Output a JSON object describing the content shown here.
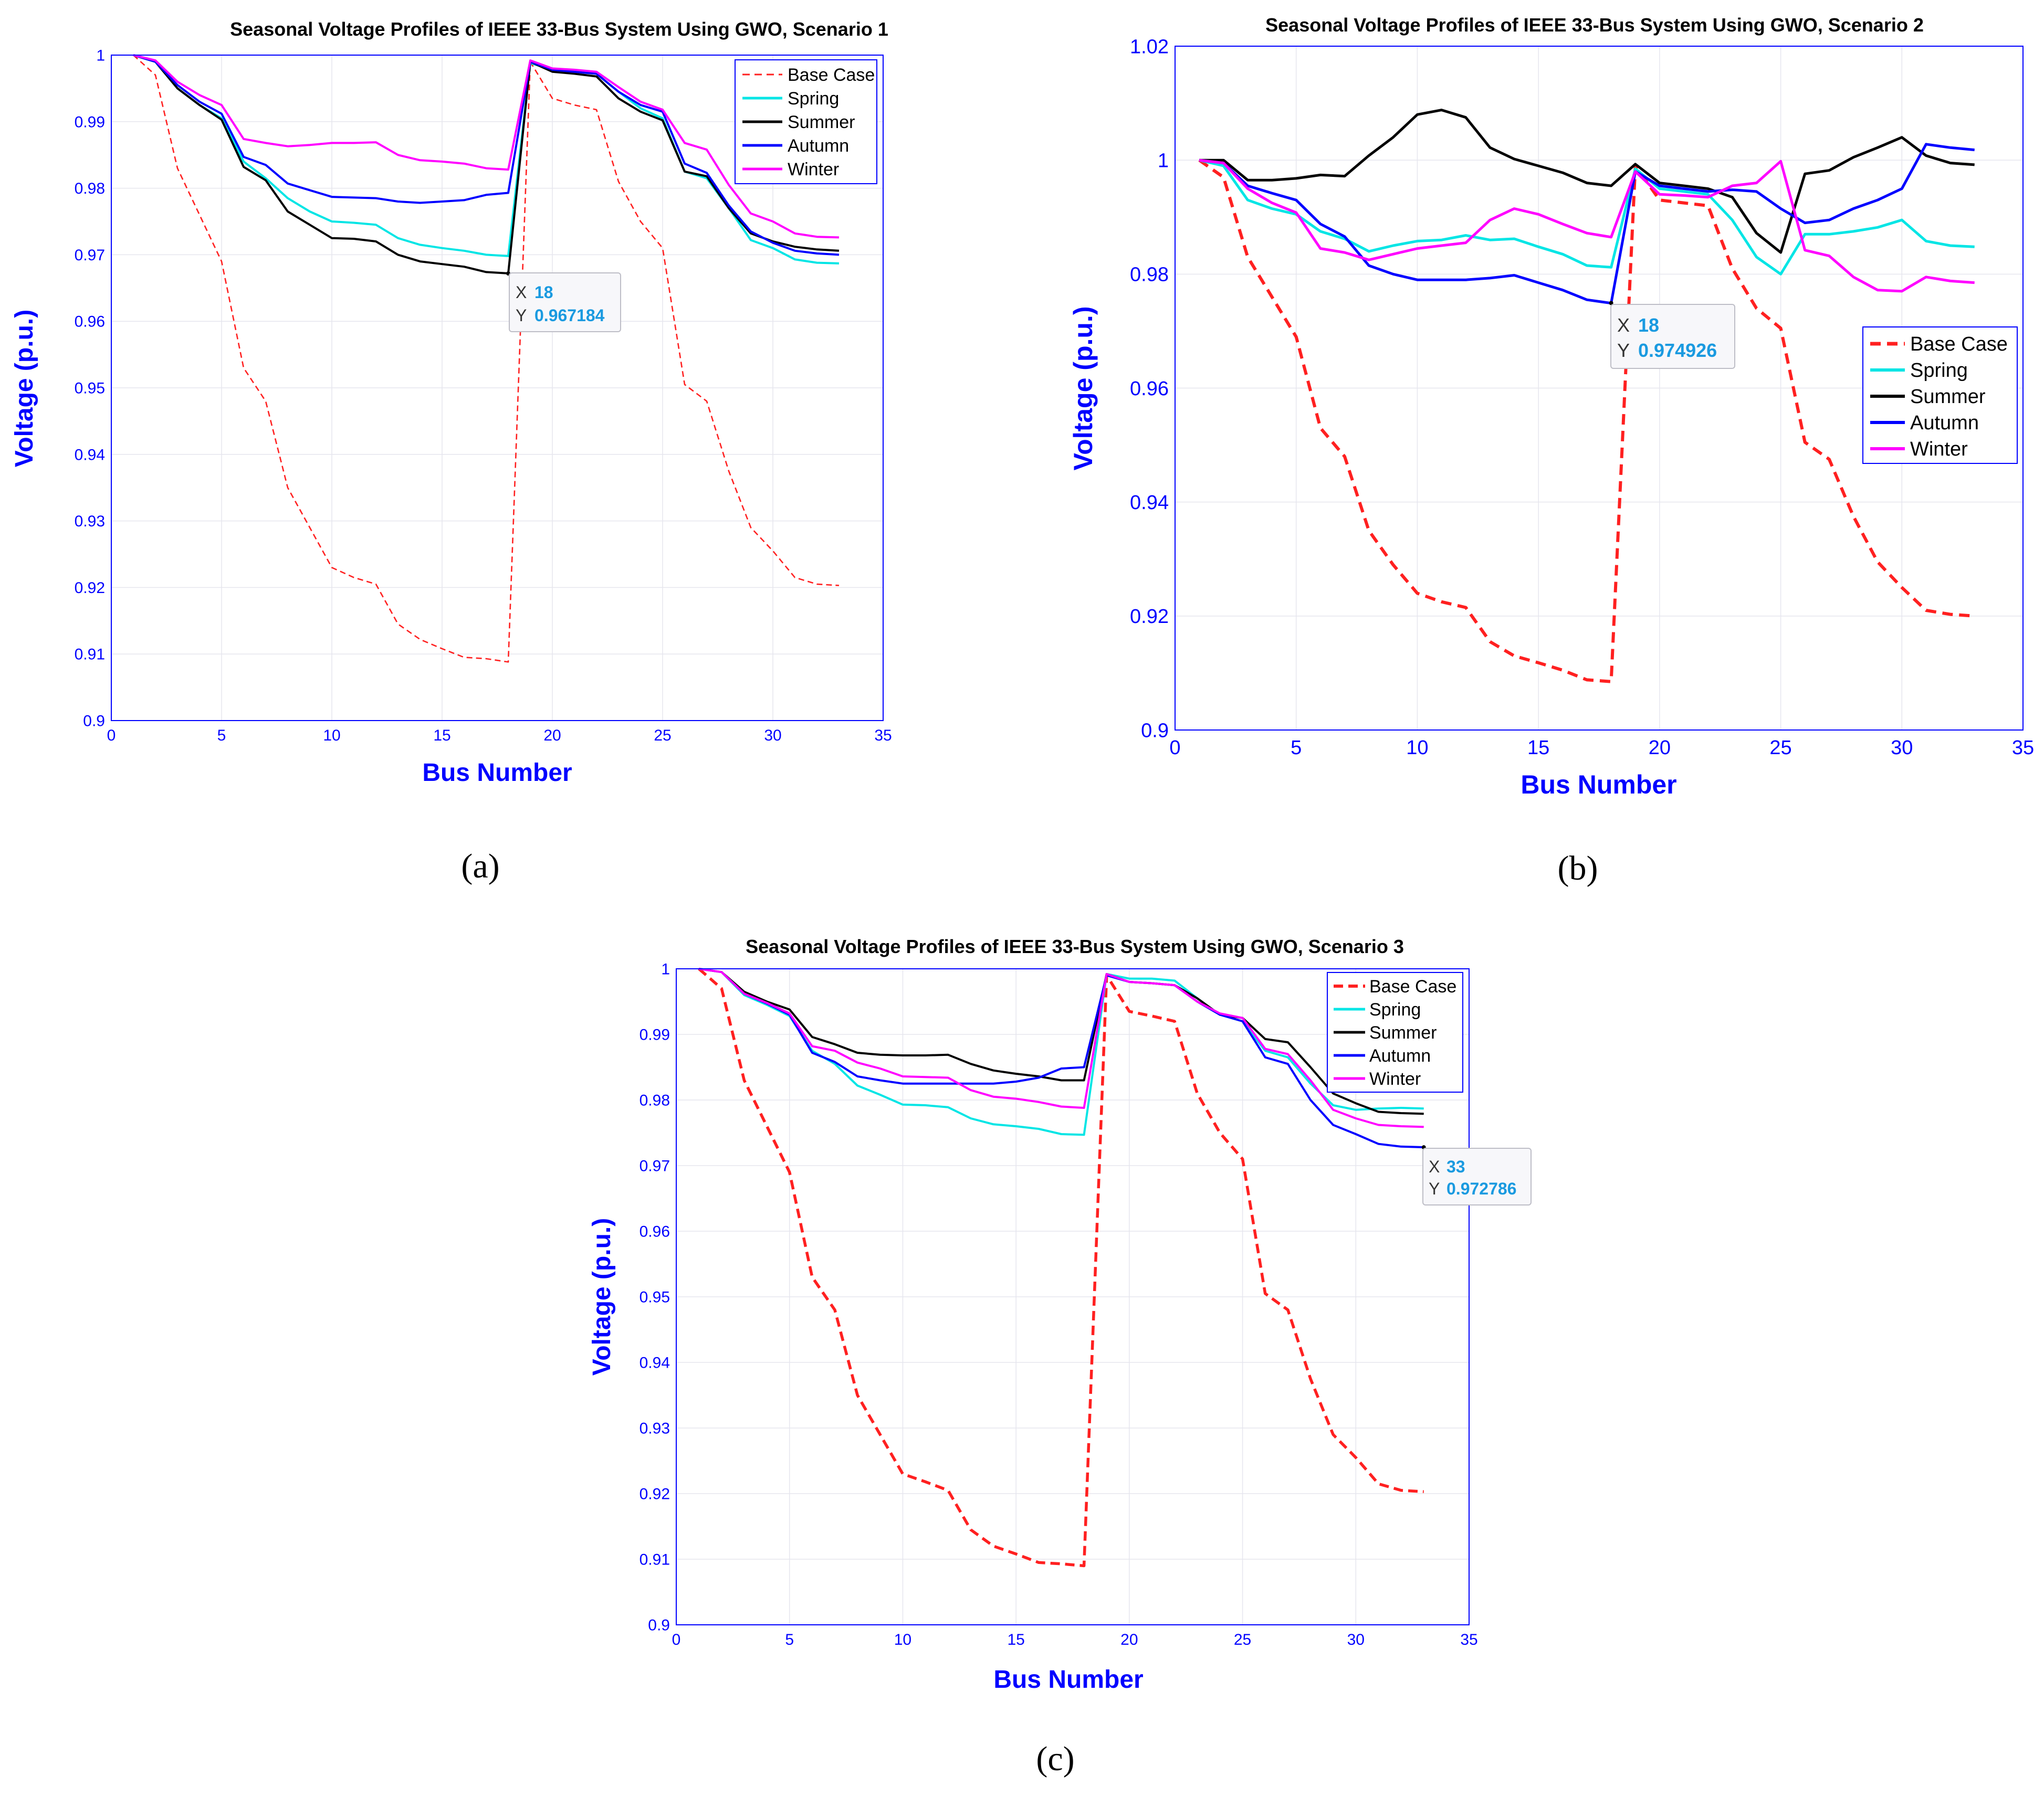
{
  "chart_data": [
    {
      "type": "line",
      "title": "Seasonal Voltage Profiles of IEEE 33-Bus System Using GWO, Scenario 1",
      "panel_label": "(a)",
      "xlabel": "Bus Number",
      "ylabel": "Voltage (p.u.)",
      "xlim": [
        0,
        35
      ],
      "ylim": [
        0.9,
        1.0
      ],
      "xticks": [
        0,
        5,
        10,
        15,
        20,
        25,
        30,
        35
      ],
      "yticks": [
        0.9,
        0.91,
        0.92,
        0.93,
        0.94,
        0.95,
        0.96,
        0.97,
        0.98,
        0.99,
        1
      ],
      "ytick_labels": [
        "0.9",
        "0.91",
        "0.92",
        "0.93",
        "0.94",
        "0.95",
        "0.96",
        "0.97",
        "0.98",
        "0.99",
        "1"
      ],
      "grid": true,
      "legend_position": "top-right",
      "x": [
        1,
        2,
        3,
        4,
        5,
        6,
        7,
        8,
        9,
        10,
        11,
        12,
        13,
        14,
        15,
        16,
        17,
        18,
        19,
        20,
        21,
        22,
        23,
        24,
        25,
        26,
        27,
        28,
        29,
        30,
        31,
        32,
        33
      ],
      "series": [
        {
          "name": "Base Case",
          "color": "#ff2020",
          "style": "dashed",
          "values": [
            1.0,
            0.997,
            0.983,
            0.976,
            0.969,
            0.953,
            0.948,
            0.935,
            0.929,
            0.923,
            0.9215,
            0.9205,
            0.9145,
            0.9122,
            0.9108,
            0.9095,
            0.9093,
            0.9088,
            0.999,
            0.9935,
            0.9925,
            0.9918,
            0.981,
            0.975,
            0.971,
            0.9505,
            0.948,
            0.9375,
            0.929,
            0.9255,
            0.9215,
            0.9205,
            0.9203
          ]
        },
        {
          "name": "Spring",
          "color": "#00e5e5",
          "style": "solid",
          "values": [
            1.0,
            0.999,
            0.995,
            0.9925,
            0.9905,
            0.984,
            0.9815,
            0.9785,
            0.9765,
            0.975,
            0.9748,
            0.9745,
            0.9725,
            0.9715,
            0.971,
            0.9706,
            0.97,
            0.9698,
            0.9988,
            0.9978,
            0.9975,
            0.9972,
            0.9945,
            0.992,
            0.9905,
            0.9825,
            0.9815,
            0.977,
            0.9722,
            0.971,
            0.9693,
            0.9688,
            0.9687
          ]
        },
        {
          "name": "Summer",
          "color": "#000000",
          "style": "solid",
          "values": [
            1.0,
            0.999,
            0.995,
            0.9925,
            0.9903,
            0.9832,
            0.9812,
            0.9765,
            0.9745,
            0.9725,
            0.9724,
            0.972,
            0.97,
            0.969,
            0.9686,
            0.9682,
            0.9674,
            0.9672,
            0.999,
            0.9975,
            0.9972,
            0.9968,
            0.9935,
            0.9915,
            0.9902,
            0.9825,
            0.9818,
            0.977,
            0.9732,
            0.972,
            0.9712,
            0.9708,
            0.9706
          ]
        },
        {
          "name": "Autumn",
          "color": "#0000ff",
          "style": "solid",
          "values": [
            1.0,
            0.999,
            0.9955,
            0.993,
            0.9912,
            0.9847,
            0.9835,
            0.9807,
            0.9797,
            0.9787,
            0.9786,
            0.9785,
            0.978,
            0.9778,
            0.978,
            0.9782,
            0.979,
            0.9793,
            0.999,
            0.9978,
            0.9975,
            0.9972,
            0.9945,
            0.9925,
            0.9915,
            0.9837,
            0.9823,
            0.9774,
            0.9735,
            0.9718,
            0.9706,
            0.9702,
            0.97
          ]
        },
        {
          "name": "Winter",
          "color": "#ff00ff",
          "style": "solid",
          "values": [
            1.0,
            0.9992,
            0.996,
            0.994,
            0.9925,
            0.9874,
            0.9868,
            0.9863,
            0.9865,
            0.9868,
            0.9868,
            0.9869,
            0.985,
            0.9842,
            0.984,
            0.9837,
            0.983,
            0.9828,
            0.9992,
            0.998,
            0.9978,
            0.9975,
            0.9952,
            0.993,
            0.9918,
            0.9868,
            0.9858,
            0.9805,
            0.9762,
            0.975,
            0.9732,
            0.9727,
            0.9726
          ]
        }
      ],
      "datatip": {
        "x_label": "X",
        "x_value": "18",
        "y_label": "Y",
        "y_value": "0.967184",
        "point": [
          18,
          0.967184
        ]
      }
    },
    {
      "type": "line",
      "title": "Seasonal Voltage Profiles of IEEE 33-Bus System Using GWO, Scenario 2",
      "panel_label": "(b)",
      "xlabel": "Bus Number",
      "ylabel": "Voltage (p.u.)",
      "xlim": [
        0,
        35
      ],
      "ylim": [
        0.9,
        1.02
      ],
      "xticks": [
        0,
        5,
        10,
        15,
        20,
        25,
        30,
        35
      ],
      "yticks": [
        0.9,
        0.92,
        0.94,
        0.96,
        0.98,
        1.0,
        1.02
      ],
      "ytick_labels": [
        "0.9",
        "0.92",
        "0.94",
        "0.96",
        "0.98",
        "1",
        "1.02"
      ],
      "grid": true,
      "legend_position": "right",
      "x": [
        1,
        2,
        3,
        4,
        5,
        6,
        7,
        8,
        9,
        10,
        11,
        12,
        13,
        14,
        15,
        16,
        17,
        18,
        19,
        20,
        21,
        22,
        23,
        24,
        25,
        26,
        27,
        28,
        29,
        30,
        31,
        32,
        33
      ],
      "series": [
        {
          "name": "Base Case",
          "color": "#ff2020",
          "style": "dashed",
          "values": [
            1.0,
            0.997,
            0.983,
            0.976,
            0.969,
            0.953,
            0.948,
            0.935,
            0.929,
            0.924,
            0.9225,
            0.9215,
            0.9155,
            0.913,
            0.9118,
            0.9105,
            0.9088,
            0.9085,
            0.999,
            0.993,
            0.9925,
            0.992,
            0.981,
            0.974,
            0.9705,
            0.9505,
            0.9475,
            0.9375,
            0.9295,
            0.925,
            0.921,
            0.9203,
            0.92
          ]
        },
        {
          "name": "Spring",
          "color": "#00e5e5",
          "style": "solid",
          "values": [
            1.0,
            0.999,
            0.993,
            0.9915,
            0.9905,
            0.9875,
            0.9862,
            0.984,
            0.985,
            0.9858,
            0.986,
            0.9868,
            0.986,
            0.9862,
            0.9848,
            0.9835,
            0.9815,
            0.9812,
            0.9985,
            0.995,
            0.9945,
            0.994,
            0.9895,
            0.983,
            0.98,
            0.987,
            0.987,
            0.9875,
            0.9882,
            0.9895,
            0.9858,
            0.985,
            0.9848
          ]
        },
        {
          "name": "Summer",
          "color": "#000000",
          "style": "solid",
          "values": [
            1.0,
            1.0,
            0.9965,
            0.9965,
            0.9968,
            0.9974,
            0.9972,
            1.0008,
            1.004,
            1.008,
            1.0088,
            1.0075,
            1.0022,
            1.0002,
            0.999,
            0.9978,
            0.996,
            0.9955,
            0.9993,
            0.996,
            0.9955,
            0.995,
            0.9935,
            0.9872,
            0.9838,
            0.9976,
            0.9982,
            1.0005,
            1.0022,
            1.004,
            1.0008,
            0.9995,
            0.9992
          ]
        },
        {
          "name": "Autumn",
          "color": "#0000ff",
          "style": "solid",
          "values": [
            1.0,
            0.9995,
            0.9955,
            0.9942,
            0.993,
            0.9888,
            0.9866,
            0.9815,
            0.98,
            0.979,
            0.979,
            0.979,
            0.9793,
            0.9798,
            0.9785,
            0.9772,
            0.9755,
            0.9749,
            0.998,
            0.9955,
            0.995,
            0.9945,
            0.9948,
            0.9945,
            0.9915,
            0.989,
            0.9895,
            0.9915,
            0.993,
            0.995,
            1.0028,
            1.0022,
            1.0018
          ]
        },
        {
          "name": "Winter",
          "color": "#ff00ff",
          "style": "solid",
          "values": [
            1.0,
            0.9995,
            0.995,
            0.9925,
            0.9908,
            0.9845,
            0.9838,
            0.9825,
            0.9835,
            0.9845,
            0.985,
            0.9855,
            0.9895,
            0.9915,
            0.9905,
            0.9888,
            0.9872,
            0.9865,
            0.998,
            0.994,
            0.9938,
            0.9935,
            0.9955,
            0.996,
            0.9998,
            0.9842,
            0.9832,
            0.9795,
            0.9772,
            0.977,
            0.9795,
            0.9788,
            0.9785
          ]
        }
      ],
      "datatip": {
        "x_label": "X",
        "x_value": "18",
        "y_label": "Y",
        "y_value": "0.974926",
        "point": [
          18,
          0.974926
        ]
      }
    },
    {
      "type": "line",
      "title": "Seasonal Voltage Profiles of IEEE 33-Bus System Using GWO, Scenario 3",
      "panel_label": "(c)",
      "xlabel": "Bus Number",
      "ylabel": "Voltage (p.u.)",
      "xlim": [
        0,
        35
      ],
      "ylim": [
        0.9,
        1.0
      ],
      "xticks": [
        0,
        5,
        10,
        15,
        20,
        25,
        30,
        35
      ],
      "yticks": [
        0.9,
        0.91,
        0.92,
        0.93,
        0.94,
        0.95,
        0.96,
        0.97,
        0.98,
        0.99,
        1
      ],
      "ytick_labels": [
        "0.9",
        "0.91",
        "0.92",
        "0.93",
        "0.94",
        "0.95",
        "0.96",
        "0.97",
        "0.98",
        "0.99",
        "1"
      ],
      "grid": true,
      "legend_position": "top-right",
      "x": [
        1,
        2,
        3,
        4,
        5,
        6,
        7,
        8,
        9,
        10,
        11,
        12,
        13,
        14,
        15,
        16,
        17,
        18,
        19,
        20,
        21,
        22,
        23,
        24,
        25,
        26,
        27,
        28,
        29,
        30,
        31,
        32,
        33
      ],
      "series": [
        {
          "name": "Base Case",
          "color": "#ff2020",
          "style": "dashed",
          "values": [
            1.0,
            0.997,
            0.983,
            0.976,
            0.969,
            0.953,
            0.948,
            0.935,
            0.929,
            0.923,
            0.9218,
            0.9205,
            0.9145,
            0.912,
            0.9108,
            0.9095,
            0.9093,
            0.909,
            0.999,
            0.9935,
            0.9928,
            0.992,
            0.981,
            0.975,
            0.971,
            0.9505,
            0.948,
            0.9375,
            0.929,
            0.9255,
            0.9215,
            0.9205,
            0.9203
          ]
        },
        {
          "name": "Spring",
          "color": "#00e5e5",
          "style": "solid",
          "values": [
            1.0,
            0.9995,
            0.996,
            0.9945,
            0.9928,
            0.9875,
            0.9855,
            0.9822,
            0.9808,
            0.9793,
            0.9792,
            0.9789,
            0.9772,
            0.9763,
            0.976,
            0.9756,
            0.9748,
            0.9747,
            0.9992,
            0.9985,
            0.9985,
            0.9982,
            0.9955,
            0.993,
            0.992,
            0.9875,
            0.9865,
            0.9825,
            0.9792,
            0.9785,
            0.9787,
            0.9788,
            0.9787
          ]
        },
        {
          "name": "Summer",
          "color": "#000000",
          "style": "solid",
          "values": [
            1.0,
            0.9995,
            0.9965,
            0.995,
            0.9938,
            0.9896,
            0.9885,
            0.9872,
            0.9869,
            0.9868,
            0.9868,
            0.9869,
            0.9855,
            0.9845,
            0.984,
            0.9836,
            0.983,
            0.983,
            0.9992,
            0.998,
            0.9978,
            0.9975,
            0.9955,
            0.993,
            0.9925,
            0.9893,
            0.9888,
            0.985,
            0.981,
            0.9795,
            0.9782,
            0.978,
            0.9779
          ]
        },
        {
          "name": "Autumn",
          "color": "#0000ff",
          "style": "solid",
          "values": [
            1.0,
            0.9995,
            0.9962,
            0.9947,
            0.993,
            0.9872,
            0.9858,
            0.9836,
            0.983,
            0.9825,
            0.9825,
            0.9825,
            0.9825,
            0.9825,
            0.9828,
            0.9834,
            0.9848,
            0.985,
            0.999,
            0.998,
            0.9978,
            0.9975,
            0.995,
            0.993,
            0.992,
            0.9865,
            0.9855,
            0.98,
            0.9762,
            0.9748,
            0.9733,
            0.9729,
            0.9728
          ]
        },
        {
          "name": "Winter",
          "color": "#ff00ff",
          "style": "solid",
          "values": [
            1.0,
            0.9995,
            0.9962,
            0.9948,
            0.9932,
            0.9882,
            0.9875,
            0.9857,
            0.9848,
            0.9836,
            0.9835,
            0.9834,
            0.9815,
            0.9805,
            0.9802,
            0.9797,
            0.979,
            0.9788,
            0.9992,
            0.998,
            0.9978,
            0.9975,
            0.995,
            0.9932,
            0.9925,
            0.9878,
            0.987,
            0.983,
            0.9785,
            0.9772,
            0.9762,
            0.976,
            0.9759
          ]
        }
      ],
      "datatip": {
        "x_label": "X",
        "x_value": "33",
        "y_label": "Y",
        "y_value": "0.972786",
        "point": [
          33,
          0.972786
        ]
      }
    }
  ]
}
